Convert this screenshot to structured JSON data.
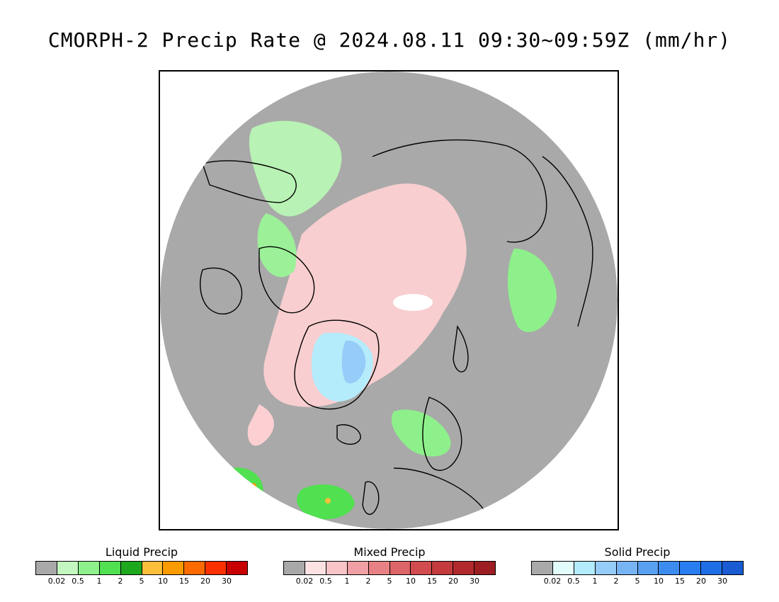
{
  "title": "CMORPH-2 Precip Rate @ 2024.08.11 09:30~09:59Z (mm/hr)",
  "map": {
    "projection": "polar stereographic (north)",
    "background_color": "#a9a9a9",
    "coastline_color": "#000000"
  },
  "legends": [
    {
      "title": "Liquid Precip",
      "colors": [
        "#a9a9a9",
        "#c4f7c0",
        "#8ef08a",
        "#50e050",
        "#1ea81e",
        "#fcbf3a",
        "#fc9b00",
        "#fc6a00",
        "#fc3000",
        "#c80000"
      ],
      "ticks": [
        "0.02",
        "0.5",
        "1",
        "2",
        "5",
        "10",
        "15",
        "20",
        "30"
      ]
    },
    {
      "title": "Mixed Precip",
      "colors": [
        "#a9a9a9",
        "#fde2e4",
        "#f9c4c8",
        "#f0a0a5",
        "#e88184",
        "#dd6467",
        "#d24c4f",
        "#c43a3d",
        "#b22a2d",
        "#9c1e22"
      ],
      "ticks": [
        "0.02",
        "0.5",
        "1",
        "2",
        "5",
        "10",
        "15",
        "20",
        "30"
      ]
    },
    {
      "title": "Solid Precip",
      "colors": [
        "#a9a9a9",
        "#e2fcfc",
        "#b4ecfc",
        "#96ccf8",
        "#78b4f4",
        "#5aa0f0",
        "#3c8cf0",
        "#287ef0",
        "#1e6ee6",
        "#1a5ad2"
      ],
      "ticks": [
        "0.02",
        "0.5",
        "1",
        "2",
        "5",
        "10",
        "15",
        "20",
        "30"
      ]
    }
  ]
}
